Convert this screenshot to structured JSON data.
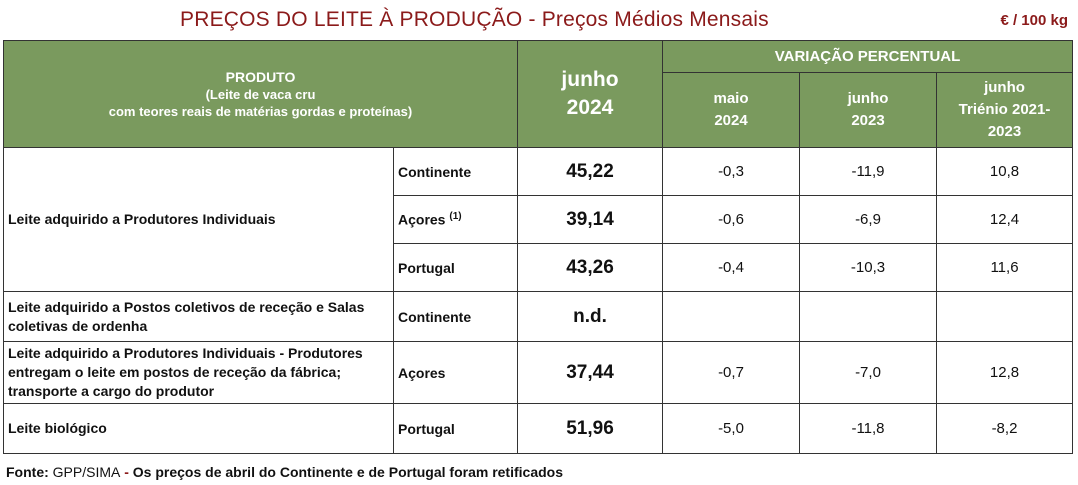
{
  "title": "PREÇOS DO LEITE À PRODUÇÃO - Preços Médios Mensais",
  "unit": "€ / 100 kg",
  "header": {
    "produto": "PRODUTO",
    "produto_sub1": "(Leite de vaca cru",
    "produto_sub2": "com teores reais de matérias gordas e proteínas)",
    "current_month": "junho",
    "current_year": "2024",
    "variation": "VARIAÇÃO PERCENTUAL",
    "col1_l1": "maio",
    "col1_l2": "2024",
    "col2_l1": "junho",
    "col2_l2": "2023",
    "col3_l1": "junho",
    "col3_l2": "Triénio 2021-",
    "col3_l3": "2023"
  },
  "rows": [
    {
      "product": "Leite adquirido a Produtores Individuais",
      "region": "Continente",
      "price": "45,22",
      "v1": "-0,3",
      "v2": "-11,9",
      "v3": "10,8"
    },
    {
      "region": "Açores",
      "note": "(1)",
      "price": "39,14",
      "v1": "-0,6",
      "v2": "-6,9",
      "v3": "12,4"
    },
    {
      "region": "Portugal",
      "price": "43,26",
      "v1": "-0,4",
      "v2": "-10,3",
      "v3": "11,6"
    },
    {
      "product_l1": "Leite adquirido a Postos coletivos de receção e Salas",
      "product_l2": "coletivas de ordenha",
      "region": "Continente",
      "price": "n.d.",
      "v1": "",
      "v2": "",
      "v3": ""
    },
    {
      "product_l1": "Leite adquirido a Produtores Individuais - Produtores",
      "product_l2": "entregam o leite em postos de receção da fábrica;",
      "product_l3": "transporte a cargo do produtor",
      "region": "Açores",
      "price": "37,44",
      "v1": "-0,7",
      "v2": "-7,0",
      "v3": "12,8"
    },
    {
      "product": "Leite biológico",
      "region": "Portugal",
      "price": "51,96",
      "v1": "-5,0",
      "v2": "-11,8",
      "v3": "-8,2"
    }
  ],
  "footer": {
    "label": "Fonte:",
    "source": " GPP/SIMA",
    "separator": " - ",
    "note": "Os preços de abril do Continente e de Portugal foram retificados"
  }
}
